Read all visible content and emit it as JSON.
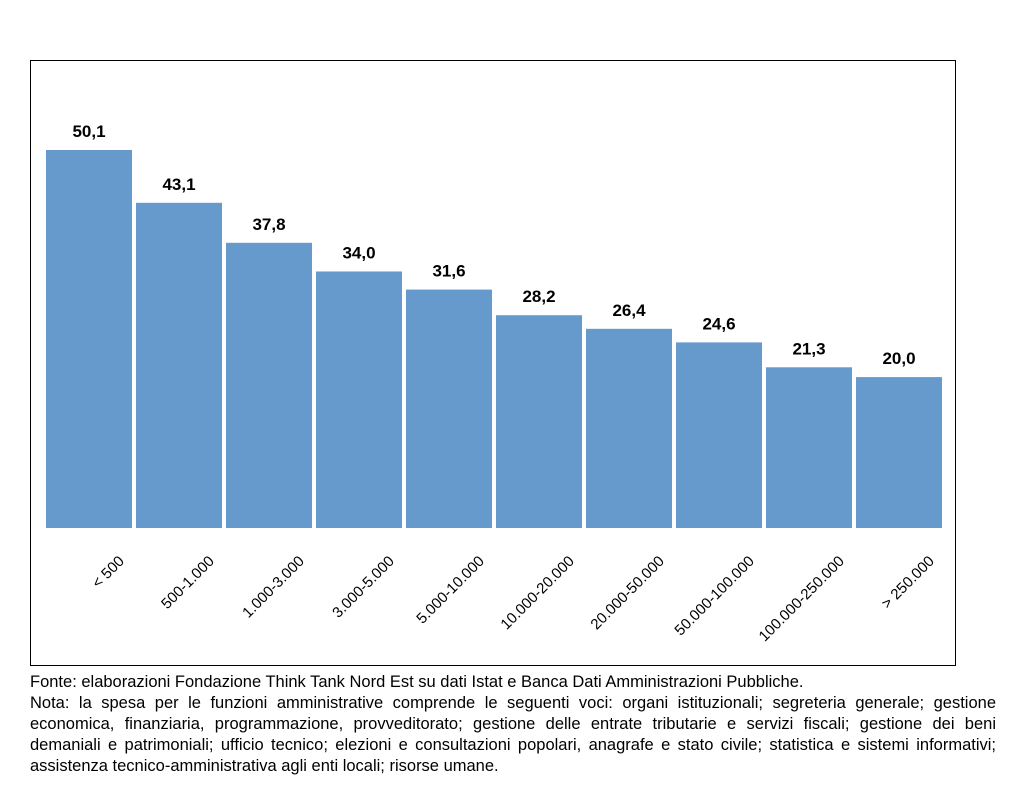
{
  "chart_data": {
    "type": "bar",
    "categories": [
      "< 500",
      "500-1.000",
      "1.000-3.000",
      "3.000-5.000",
      "5.000-10.000",
      "10.000-20.000",
      "20.000-50.000",
      "50.000-100.000",
      "100.000-250.000",
      "> 250.000"
    ],
    "values": [
      50.1,
      43.1,
      37.8,
      34.0,
      31.6,
      28.2,
      26.4,
      24.6,
      21.3,
      20.0
    ],
    "value_labels": [
      "50,1",
      "43,1",
      "37,8",
      "34,0",
      "31,6",
      "28,2",
      "26,4",
      "24,6",
      "21,3",
      "20,0"
    ],
    "ylim": [
      0,
      50.1
    ],
    "grid": false,
    "legend": "none",
    "bar_color": "#6699CC"
  },
  "notes": {
    "source": "Fonte: elaborazioni Fondazione Think Tank Nord Est su dati Istat e Banca Dati Amministrazioni Pubbliche.",
    "note": "Nota: la spesa per le funzioni amministrative comprende le seguenti voci: organi istituzionali; segreteria generale; gestione economica, finanziaria, programmazione, provveditorato; gestione delle entrate tributarie e servizi fiscali; gestione dei beni demaniali e patrimoniali; ufficio tecnico; elezioni e consultazioni popolari, anagrafe e stato civile; statistica e sistemi informativi; assistenza tecnico-amministrativa agli enti locali; risorse umane."
  }
}
